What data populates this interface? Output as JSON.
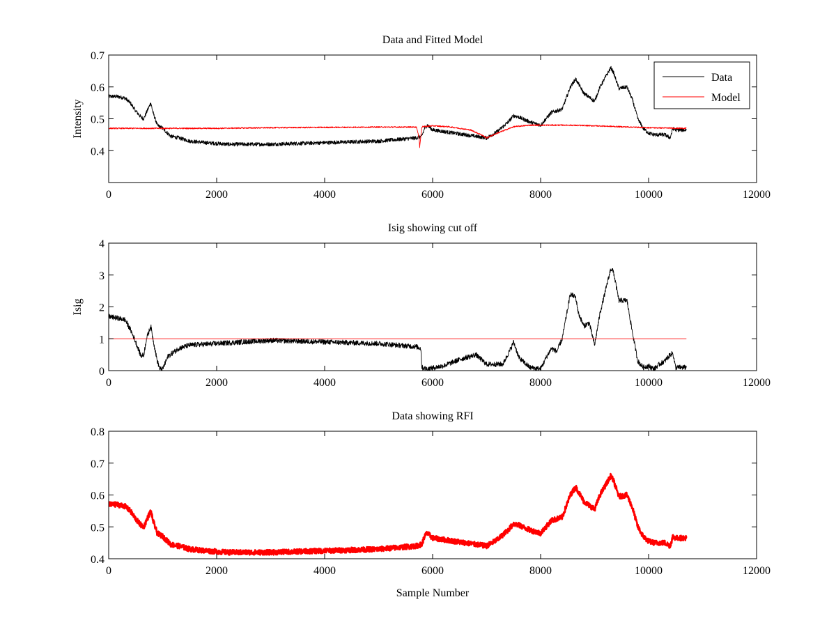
{
  "figure": {
    "background": "#ffffff",
    "xlabel": "Sample Number"
  },
  "chart_data": [
    {
      "type": "line",
      "title": "Data and Fitted Model",
      "xlabel": "",
      "ylabel": "Intensity",
      "xlim": [
        0,
        12000
      ],
      "ylim": [
        0.3,
        0.7
      ],
      "xticks": [
        0,
        2000,
        4000,
        6000,
        8000,
        10000,
        12000
      ],
      "xtick_labels": [
        "0",
        "2000",
        "4000",
        "6000",
        "8000",
        "10000",
        "12000"
      ],
      "yticks": [
        0.4,
        0.5,
        0.6,
        0.7
      ],
      "ytick_labels": [
        "0.4",
        "0.5",
        "0.6",
        "0.7"
      ],
      "grid": false,
      "legend": {
        "position": "top-right",
        "entries": [
          "Data",
          "Model"
        ]
      },
      "series": [
        {
          "name": "Data",
          "color": "#000000",
          "noise": 0.006,
          "x": [
            0,
            150,
            300,
            400,
            500,
            600,
            650,
            700,
            780,
            820,
            900,
            1000,
            1150,
            1300,
            1500,
            1800,
            2200,
            3000,
            4000,
            5000,
            5700,
            5800,
            5850,
            5900,
            6000,
            6200,
            6600,
            7000,
            7200,
            7400,
            7500,
            7600,
            7800,
            8000,
            8100,
            8200,
            8400,
            8550,
            8650,
            8700,
            8800,
            9000,
            9100,
            9200,
            9300,
            9350,
            9450,
            9600,
            9700,
            9800,
            9900,
            10000,
            10100,
            10200,
            10300,
            10400,
            10450,
            10500,
            10700
          ],
          "y": [
            0.57,
            0.57,
            0.565,
            0.55,
            0.525,
            0.505,
            0.5,
            0.52,
            0.55,
            0.52,
            0.48,
            0.47,
            0.445,
            0.44,
            0.43,
            0.425,
            0.42,
            0.42,
            0.425,
            0.43,
            0.44,
            0.445,
            0.47,
            0.48,
            0.465,
            0.46,
            0.45,
            0.44,
            0.46,
            0.49,
            0.51,
            0.505,
            0.49,
            0.48,
            0.5,
            0.52,
            0.53,
            0.6,
            0.625,
            0.61,
            0.58,
            0.555,
            0.6,
            0.63,
            0.66,
            0.645,
            0.595,
            0.6,
            0.56,
            0.5,
            0.47,
            0.455,
            0.45,
            0.45,
            0.45,
            0.44,
            0.47,
            0.465,
            0.465
          ]
        },
        {
          "name": "Model",
          "color": "#ff0000",
          "noise": 0.002,
          "x": [
            0,
            1000,
            2000,
            3000,
            4000,
            5000,
            5700,
            5750,
            5760,
            5800,
            6000,
            6300,
            6700,
            6900,
            7000,
            7200,
            7500,
            7800,
            8000,
            8500,
            9000,
            9500,
            10000,
            10700
          ],
          "y": [
            0.47,
            0.47,
            0.47,
            0.472,
            0.473,
            0.474,
            0.474,
            0.44,
            0.41,
            0.475,
            0.478,
            0.475,
            0.465,
            0.45,
            0.44,
            0.455,
            0.475,
            0.48,
            0.48,
            0.48,
            0.478,
            0.475,
            0.472,
            0.47
          ]
        }
      ]
    },
    {
      "type": "line",
      "title": "Isig showing cut off",
      "xlabel": "",
      "ylabel": "Isig",
      "xlim": [
        0,
        12000
      ],
      "ylim": [
        0,
        4
      ],
      "xticks": [
        0,
        2000,
        4000,
        6000,
        8000,
        10000,
        12000
      ],
      "xtick_labels": [
        "0",
        "2000",
        "4000",
        "6000",
        "8000",
        "10000",
        "12000"
      ],
      "yticks": [
        0,
        1,
        2,
        3,
        4
      ],
      "ytick_labels": [
        "0",
        "1",
        "2",
        "3",
        "4"
      ],
      "grid": false,
      "series": [
        {
          "color": "#000000",
          "noise": 0.08,
          "x": [
            0,
            150,
            300,
            400,
            500,
            600,
            650,
            700,
            780,
            820,
            900,
            950,
            1000,
            1100,
            1300,
            1500,
            2000,
            3000,
            4000,
            5000,
            5700,
            5780,
            5800,
            5900,
            6200,
            6500,
            6800,
            7000,
            7300,
            7450,
            7500,
            7600,
            7800,
            8000,
            8100,
            8200,
            8300,
            8400,
            8550,
            8650,
            8700,
            8800,
            8900,
            9000,
            9100,
            9200,
            9300,
            9350,
            9450,
            9600,
            9700,
            9800,
            9900,
            10000,
            10100,
            10200,
            10300,
            10400,
            10450,
            10500,
            10700
          ],
          "y": [
            1.7,
            1.65,
            1.6,
            1.3,
            0.9,
            0.45,
            0.5,
            1.0,
            1.4,
            1.0,
            0.3,
            0.05,
            0.05,
            0.45,
            0.7,
            0.8,
            0.85,
            0.95,
            0.9,
            0.85,
            0.75,
            0.7,
            0.1,
            0.05,
            0.15,
            0.35,
            0.5,
            0.2,
            0.2,
            0.7,
            0.9,
            0.4,
            0.1,
            0.05,
            0.4,
            0.7,
            0.6,
            1.0,
            2.4,
            2.3,
            1.8,
            1.4,
            1.5,
            0.8,
            1.8,
            2.5,
            3.2,
            3.1,
            2.2,
            2.2,
            1.2,
            0.3,
            0.1,
            0.15,
            0.05,
            0.2,
            0.3,
            0.5,
            0.55,
            0.1,
            0.1
          ]
        },
        {
          "color": "#ff0000",
          "noise": 0,
          "x": [
            0,
            10700
          ],
          "y": [
            1,
            1
          ]
        }
      ]
    },
    {
      "type": "line",
      "title": "Data showing RFI",
      "xlabel": "Sample Number",
      "ylabel": "",
      "xlim": [
        0,
        12000
      ],
      "ylim": [
        0.4,
        0.8
      ],
      "xticks": [
        0,
        2000,
        4000,
        6000,
        8000,
        10000,
        12000
      ],
      "xtick_labels": [
        "0",
        "2000",
        "4000",
        "6000",
        "8000",
        "10000",
        "12000"
      ],
      "yticks": [
        0.4,
        0.5,
        0.6,
        0.7,
        0.8
      ],
      "ytick_labels": [
        "0.4",
        "0.5",
        "0.6",
        "0.7",
        "0.8"
      ],
      "grid": false,
      "series": [
        {
          "color": "#ff0000",
          "noise": 0.008,
          "thick": true,
          "x": [
            0,
            150,
            300,
            400,
            500,
            600,
            650,
            700,
            780,
            820,
            900,
            1000,
            1150,
            1300,
            1500,
            1800,
            2200,
            3000,
            4000,
            5000,
            5700,
            5800,
            5850,
            5900,
            6000,
            6200,
            6600,
            7000,
            7200,
            7400,
            7500,
            7600,
            7800,
            8000,
            8100,
            8200,
            8400,
            8550,
            8650,
            8700,
            8800,
            9000,
            9100,
            9200,
            9300,
            9350,
            9450,
            9600,
            9700,
            9800,
            9900,
            10000,
            10100,
            10200,
            10300,
            10400,
            10450,
            10500,
            10700
          ],
          "y": [
            0.57,
            0.57,
            0.565,
            0.55,
            0.525,
            0.505,
            0.5,
            0.52,
            0.55,
            0.52,
            0.48,
            0.47,
            0.445,
            0.44,
            0.43,
            0.425,
            0.42,
            0.42,
            0.425,
            0.43,
            0.44,
            0.445,
            0.47,
            0.48,
            0.465,
            0.46,
            0.45,
            0.44,
            0.46,
            0.49,
            0.51,
            0.505,
            0.49,
            0.48,
            0.5,
            0.52,
            0.53,
            0.6,
            0.625,
            0.61,
            0.58,
            0.555,
            0.6,
            0.63,
            0.66,
            0.645,
            0.595,
            0.6,
            0.56,
            0.5,
            0.47,
            0.455,
            0.45,
            0.45,
            0.45,
            0.44,
            0.47,
            0.465,
            0.465
          ]
        }
      ]
    }
  ]
}
